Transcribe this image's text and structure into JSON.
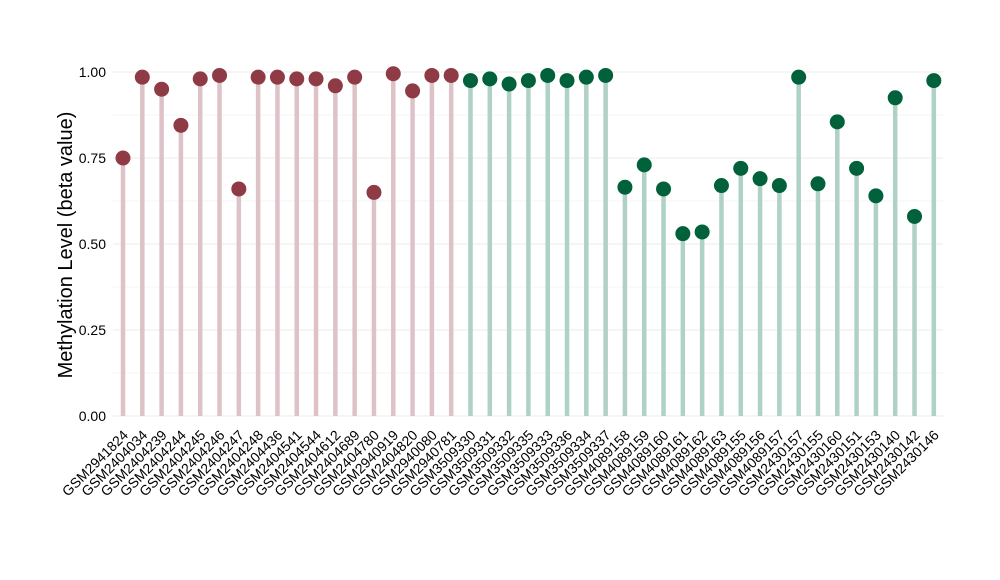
{
  "chart_data": {
    "type": "lollipop",
    "ylabel": "Methylation Level (beta value)",
    "ylim": [
      0,
      1
    ],
    "yticks": [
      "0.00",
      "0.25",
      "0.50",
      "0.75",
      "1.00"
    ],
    "grid": true,
    "series": [
      {
        "color": "#8e3b46",
        "stem_color": "#ddc2c8",
        "categories": [
          "GSM2941824",
          "GSM2404034",
          "GSM2404239",
          "GSM2404244",
          "GSM2404245",
          "GSM2404246",
          "GSM2404247",
          "GSM2404248",
          "GSM2404436",
          "GSM2404541",
          "GSM2404544",
          "GSM2404612",
          "GSM2404689",
          "GSM2404780",
          "GSM2940919",
          "GSM2404820",
          "GSM2940080",
          "GSM2940781"
        ],
        "values": [
          0.75,
          0.985,
          0.95,
          0.845,
          0.98,
          0.99,
          0.66,
          0.985,
          0.985,
          0.98,
          0.98,
          0.96,
          0.985,
          0.65,
          0.995,
          0.945,
          0.99,
          0.99
        ]
      },
      {
        "color": "#00613a",
        "stem_color": "#b0d1c5",
        "categories": [
          "GSM3509330",
          "GSM3509331",
          "GSM3509332",
          "GSM3509335",
          "GSM3509333",
          "GSM3509336",
          "GSM3509334",
          "GSM3509337",
          "GSM4089158",
          "GSM4089159",
          "GSM4089160",
          "GSM4089161",
          "GSM4089162",
          "GSM4089163",
          "GSM4089155",
          "GSM4089156",
          "GSM4089157",
          "GSM2430157",
          "GSM2430155",
          "GSM2430160",
          "GSM2430151",
          "GSM2430153",
          "GSM2430140",
          "GSM2430142",
          "GSM2430146"
        ],
        "values": [
          0.975,
          0.98,
          0.965,
          0.975,
          0.99,
          0.975,
          0.985,
          0.99,
          0.665,
          0.73,
          0.66,
          0.53,
          0.535,
          0.67,
          0.72,
          0.69,
          0.67,
          0.985,
          0.675,
          0.855,
          0.72,
          0.64,
          0.925,
          0.58,
          0.975
        ]
      }
    ]
  }
}
